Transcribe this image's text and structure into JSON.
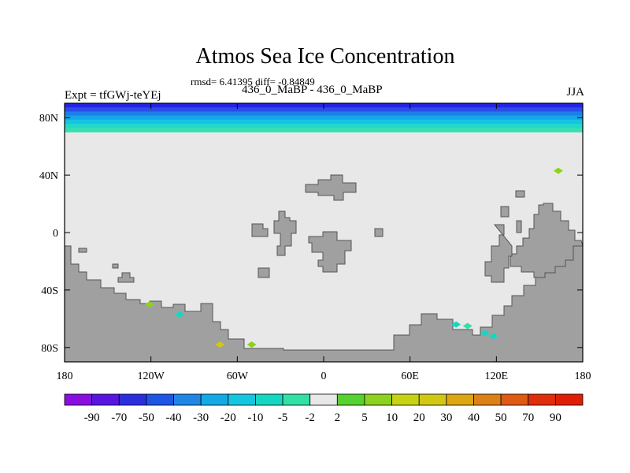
{
  "chart_data": {
    "type": "heatmap",
    "title": "Atmos Sea Ice Concentration",
    "stats_line": "rmsd= 6.41395 diff= -0.84849",
    "left_label": "Expt = tfGWj-teYEj",
    "center_label": "436_0_MaBP - 436_0_MaBP",
    "right_label": "JJA",
    "x_range": [
      -180,
      180
    ],
    "y_range": [
      -90,
      90
    ],
    "x_ticks": [
      {
        "value": -180,
        "label": "180"
      },
      {
        "value": -120,
        "label": "120W"
      },
      {
        "value": -60,
        "label": "60W"
      },
      {
        "value": 0,
        "label": "0"
      },
      {
        "value": 60,
        "label": "60E"
      },
      {
        "value": 120,
        "label": "120E"
      },
      {
        "value": 180,
        "label": "180"
      }
    ],
    "y_ticks": [
      {
        "value": 80,
        "label": "80N"
      },
      {
        "value": 40,
        "label": "40N"
      },
      {
        "value": 0,
        "label": "0"
      },
      {
        "value": -40,
        "label": "40S"
      },
      {
        "value": -80,
        "label": "80S"
      }
    ],
    "colorbar_levels": [
      "-90",
      "-70",
      "-50",
      "-40",
      "-30",
      "-20",
      "-10",
      "-5",
      "-2",
      "2",
      "5",
      "10",
      "20",
      "30",
      "40",
      "50",
      "70",
      "90"
    ],
    "colorbar_colors": [
      "#8a0ee0",
      "#5a14e0",
      "#2d2de0",
      "#1f55e6",
      "#1f86e6",
      "#12aae6",
      "#14c6e0",
      "#14d7c2",
      "#32e0a6",
      "#e8e8e8",
      "#55d22d",
      "#8cd21e",
      "#c8d214",
      "#d2c814",
      "#dca514",
      "#dc8214",
      "#e05a14",
      "#e02d0a",
      "#e01e05"
    ],
    "colors": {
      "ocean": "#e8e8e8",
      "land": "#a0a0a0",
      "arctic_bands": [
        "#2424e6",
        "#2a4ce8",
        "#1e7ee8",
        "#14a8e8",
        "#14c4e4",
        "#22d8c8",
        "#38e0b0"
      ]
    },
    "anomaly_patches": [
      {
        "lon": 163,
        "lat": 43,
        "value": 7
      },
      {
        "lon": -121,
        "lat": -50,
        "value": 7
      },
      {
        "lon": -100,
        "lat": -57,
        "value": -8
      },
      {
        "lon": -72,
        "lat": -78,
        "value": 22
      },
      {
        "lon": -50,
        "lat": -78,
        "value": 8
      },
      {
        "lon": 92,
        "lat": -64,
        "value": -6
      },
      {
        "lon": 100,
        "lat": -65,
        "value": -4
      },
      {
        "lon": 112,
        "lat": -70,
        "value": -7
      },
      {
        "lon": 118,
        "lat": -72,
        "value": -6
      }
    ]
  }
}
